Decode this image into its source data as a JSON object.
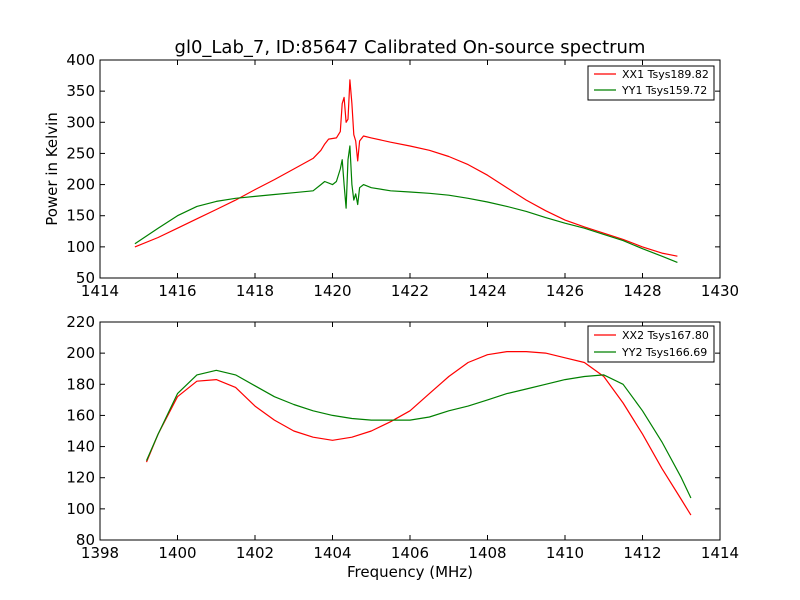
{
  "chart_data": [
    {
      "type": "line",
      "title": "gl0_Lab_7, ID:85647 Calibrated On-source spectrum",
      "xlabel": "",
      "ylabel": "Power in Kelvin",
      "xlim": [
        1414,
        1430
      ],
      "ylim": [
        50,
        400
      ],
      "xticks": [
        "1414",
        "1416",
        "1418",
        "1420",
        "1422",
        "1424",
        "1426",
        "1428",
        "1430"
      ],
      "yticks": [
        "50",
        "100",
        "150",
        "200",
        "250",
        "300",
        "350",
        "400"
      ],
      "grid": false,
      "legend": "top-right",
      "series": [
        {
          "name": "XX1 Tsys189.82",
          "color": "#ff0000",
          "points": [
            [
              1414.9,
              100
            ],
            [
              1415.5,
              115
            ],
            [
              1416.0,
              130
            ],
            [
              1416.5,
              145
            ],
            [
              1417.0,
              160
            ],
            [
              1417.5,
              175
            ],
            [
              1418.0,
              192
            ],
            [
              1418.5,
              208
            ],
            [
              1419.0,
              225
            ],
            [
              1419.5,
              242
            ],
            [
              1419.7,
              255
            ],
            [
              1419.8,
              265
            ],
            [
              1419.9,
              273
            ],
            [
              1420.1,
              275
            ],
            [
              1420.2,
              285
            ],
            [
              1420.25,
              330
            ],
            [
              1420.3,
              340
            ],
            [
              1420.35,
              300
            ],
            [
              1420.4,
              305
            ],
            [
              1420.45,
              368
            ],
            [
              1420.5,
              330
            ],
            [
              1420.55,
              280
            ],
            [
              1420.6,
              270
            ],
            [
              1420.65,
              238
            ],
            [
              1420.7,
              270
            ],
            [
              1420.8,
              278
            ],
            [
              1421.0,
              275
            ],
            [
              1421.5,
              268
            ],
            [
              1422.0,
              262
            ],
            [
              1422.5,
              255
            ],
            [
              1423.0,
              245
            ],
            [
              1423.5,
              232
            ],
            [
              1424.0,
              215
            ],
            [
              1424.5,
              195
            ],
            [
              1425.0,
              175
            ],
            [
              1425.5,
              158
            ],
            [
              1426.0,
              143
            ],
            [
              1426.5,
              132
            ],
            [
              1427.0,
              122
            ],
            [
              1427.5,
              112
            ],
            [
              1428.0,
              100
            ],
            [
              1428.5,
              90
            ],
            [
              1428.9,
              85
            ]
          ]
        },
        {
          "name": "YY1 Tsys159.72",
          "color": "#008000",
          "points": [
            [
              1414.9,
              105
            ],
            [
              1415.5,
              130
            ],
            [
              1416.0,
              150
            ],
            [
              1416.5,
              165
            ],
            [
              1417.0,
              173
            ],
            [
              1417.5,
              178
            ],
            [
              1418.0,
              181
            ],
            [
              1418.5,
              184
            ],
            [
              1419.0,
              187
            ],
            [
              1419.5,
              190
            ],
            [
              1419.7,
              200
            ],
            [
              1419.8,
              205
            ],
            [
              1420.0,
              200
            ],
            [
              1420.1,
              205
            ],
            [
              1420.2,
              225
            ],
            [
              1420.25,
              240
            ],
            [
              1420.3,
              200
            ],
            [
              1420.35,
              162
            ],
            [
              1420.4,
              240
            ],
            [
              1420.45,
              262
            ],
            [
              1420.5,
              200
            ],
            [
              1420.55,
              175
            ],
            [
              1420.6,
              185
            ],
            [
              1420.65,
              168
            ],
            [
              1420.7,
              195
            ],
            [
              1420.8,
              200
            ],
            [
              1421.0,
              195
            ],
            [
              1421.5,
              190
            ],
            [
              1422.0,
              188
            ],
            [
              1422.5,
              186
            ],
            [
              1423.0,
              183
            ],
            [
              1423.5,
              178
            ],
            [
              1424.0,
              172
            ],
            [
              1424.5,
              165
            ],
            [
              1425.0,
              157
            ],
            [
              1425.5,
              147
            ],
            [
              1426.0,
              138
            ],
            [
              1426.5,
              130
            ],
            [
              1427.0,
              120
            ],
            [
              1427.5,
              110
            ],
            [
              1428.0,
              97
            ],
            [
              1428.5,
              85
            ],
            [
              1428.9,
              75
            ]
          ]
        }
      ]
    },
    {
      "type": "line",
      "title": "",
      "xlabel": "Frequency (MHz)",
      "ylabel": "",
      "xlim": [
        1398,
        1414
      ],
      "ylim": [
        80,
        220
      ],
      "xticks": [
        "1398",
        "1400",
        "1402",
        "1404",
        "1406",
        "1408",
        "1410",
        "1412",
        "1414"
      ],
      "yticks": [
        "80",
        "100",
        "120",
        "140",
        "160",
        "180",
        "200",
        "220"
      ],
      "grid": false,
      "legend": "top-right",
      "series": [
        {
          "name": "XX2 Tsys167.80",
          "color": "#ff0000",
          "points": [
            [
              1399.2,
              130
            ],
            [
              1399.5,
              148
            ],
            [
              1400.0,
              172
            ],
            [
              1400.5,
              182
            ],
            [
              1401.0,
              183
            ],
            [
              1401.5,
              178
            ],
            [
              1402.0,
              166
            ],
            [
              1402.5,
              157
            ],
            [
              1403.0,
              150
            ],
            [
              1403.5,
              146
            ],
            [
              1404.0,
              144
            ],
            [
              1404.5,
              146
            ],
            [
              1405.0,
              150
            ],
            [
              1405.5,
              156
            ],
            [
              1406.0,
              163
            ],
            [
              1406.5,
              174
            ],
            [
              1407.0,
              185
            ],
            [
              1407.5,
              194
            ],
            [
              1408.0,
              199
            ],
            [
              1408.5,
              201
            ],
            [
              1409.0,
              201
            ],
            [
              1409.5,
              200
            ],
            [
              1410.0,
              197
            ],
            [
              1410.5,
              194
            ],
            [
              1411.0,
              185
            ],
            [
              1411.5,
              168
            ],
            [
              1412.0,
              148
            ],
            [
              1412.5,
              126
            ],
            [
              1413.0,
              106
            ],
            [
              1413.25,
              96
            ]
          ]
        },
        {
          "name": "YY2 Tsys166.69",
          "color": "#008000",
          "points": [
            [
              1399.2,
              131
            ],
            [
              1399.5,
              148
            ],
            [
              1400.0,
              174
            ],
            [
              1400.5,
              186
            ],
            [
              1401.0,
              189
            ],
            [
              1401.5,
              186
            ],
            [
              1402.0,
              179
            ],
            [
              1402.5,
              172
            ],
            [
              1403.0,
              167
            ],
            [
              1403.5,
              163
            ],
            [
              1404.0,
              160
            ],
            [
              1404.5,
              158
            ],
            [
              1405.0,
              157
            ],
            [
              1405.5,
              157
            ],
            [
              1406.0,
              157
            ],
            [
              1406.5,
              159
            ],
            [
              1407.0,
              163
            ],
            [
              1407.5,
              166
            ],
            [
              1408.0,
              170
            ],
            [
              1408.5,
              174
            ],
            [
              1409.0,
              177
            ],
            [
              1409.5,
              180
            ],
            [
              1410.0,
              183
            ],
            [
              1410.5,
              185
            ],
            [
              1411.0,
              186
            ],
            [
              1411.5,
              180
            ],
            [
              1412.0,
              163
            ],
            [
              1412.5,
              143
            ],
            [
              1413.0,
              120
            ],
            [
              1413.25,
              107
            ]
          ]
        }
      ]
    }
  ]
}
